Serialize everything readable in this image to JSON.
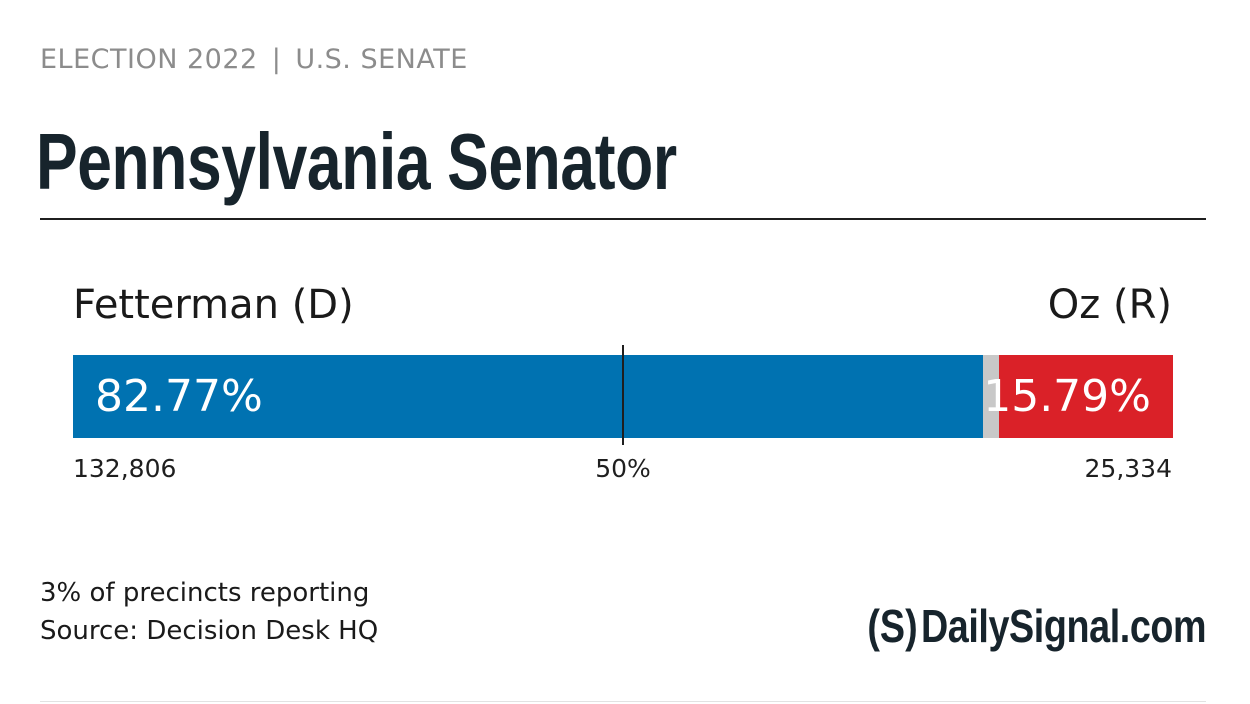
{
  "header": {
    "kicker_left": "ELECTION 2022",
    "kicker_sep": "|",
    "kicker_right": "U.S. SENATE",
    "title": "Pennsylvania Senator"
  },
  "chart_data": {
    "type": "bar",
    "orientation": "horizontal-stacked",
    "title": "Pennsylvania Senator",
    "categories": [
      "Fetterman (D)",
      "Other",
      "Oz (R)"
    ],
    "series": [
      {
        "name": "Fetterman (D)",
        "percent": 82.77,
        "percent_label": "82.77%",
        "votes": 132806,
        "votes_label": "132,806",
        "color": "#0072b1"
      },
      {
        "name": "",
        "percent": 1.44,
        "color": "#c8c8c8"
      },
      {
        "name": "Oz (R)",
        "percent": 15.79,
        "percent_label": "15.79%",
        "votes": 25334,
        "votes_label": "25,334",
        "color": "#da2128"
      }
    ],
    "midpoint": 50,
    "midpoint_label": "50%",
    "xlim": [
      0,
      100
    ]
  },
  "footer": {
    "reporting": "3% of precincts reporting",
    "source": "Source: Decision Desk HQ",
    "logo_mark": "(S)",
    "logo_text": "DailySignal.com"
  },
  "colors": {
    "democrat": "#0072b1",
    "republican": "#da2128",
    "other": "#c8c8c8",
    "kicker": "#8c8c8c",
    "headline": "#17242c"
  }
}
